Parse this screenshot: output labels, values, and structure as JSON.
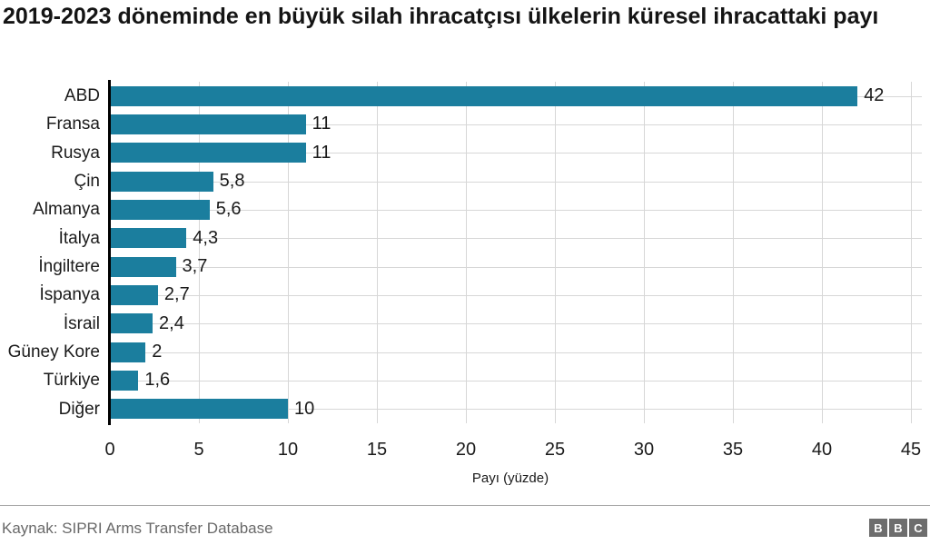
{
  "title": "2019-2023 döneminde en büyük silah ihracatçısı ülkelerin küresel ihracattaki payı",
  "chart_data": {
    "type": "bar",
    "orientation": "horizontal",
    "categories": [
      "ABD",
      "Fransa",
      "Rusya",
      "Çin",
      "Almanya",
      "İtalya",
      "İngiltere",
      "İspanya",
      "İsrail",
      "Güney Kore",
      "Türkiye",
      "Diğer"
    ],
    "values": [
      42,
      11,
      11,
      5.8,
      5.6,
      4.3,
      3.7,
      2.7,
      2.4,
      2,
      1.6,
      10
    ],
    "value_labels": [
      "42",
      "11",
      "11",
      "5,8",
      "5,6",
      "4,3",
      "3,7",
      "2,7",
      "2,4",
      "2",
      "1,6",
      "10"
    ],
    "xlabel": "Payı (yüzde)",
    "xlim": [
      0,
      45
    ],
    "xticks": [
      0,
      5,
      10,
      15,
      20,
      25,
      30,
      35,
      40,
      45
    ],
    "grid": "both",
    "legend": "none"
  },
  "footer": {
    "source": "Kaynak: SIPRI Arms Transfer Database",
    "logo_letters": [
      "B",
      "B",
      "C"
    ]
  },
  "colors": {
    "bar": "#1b7e9e",
    "grid": "#d7d7d7",
    "axis": "#000000",
    "title_text": "#141414",
    "source_text": "#696969",
    "logo_bg": "#6d6d6d"
  }
}
